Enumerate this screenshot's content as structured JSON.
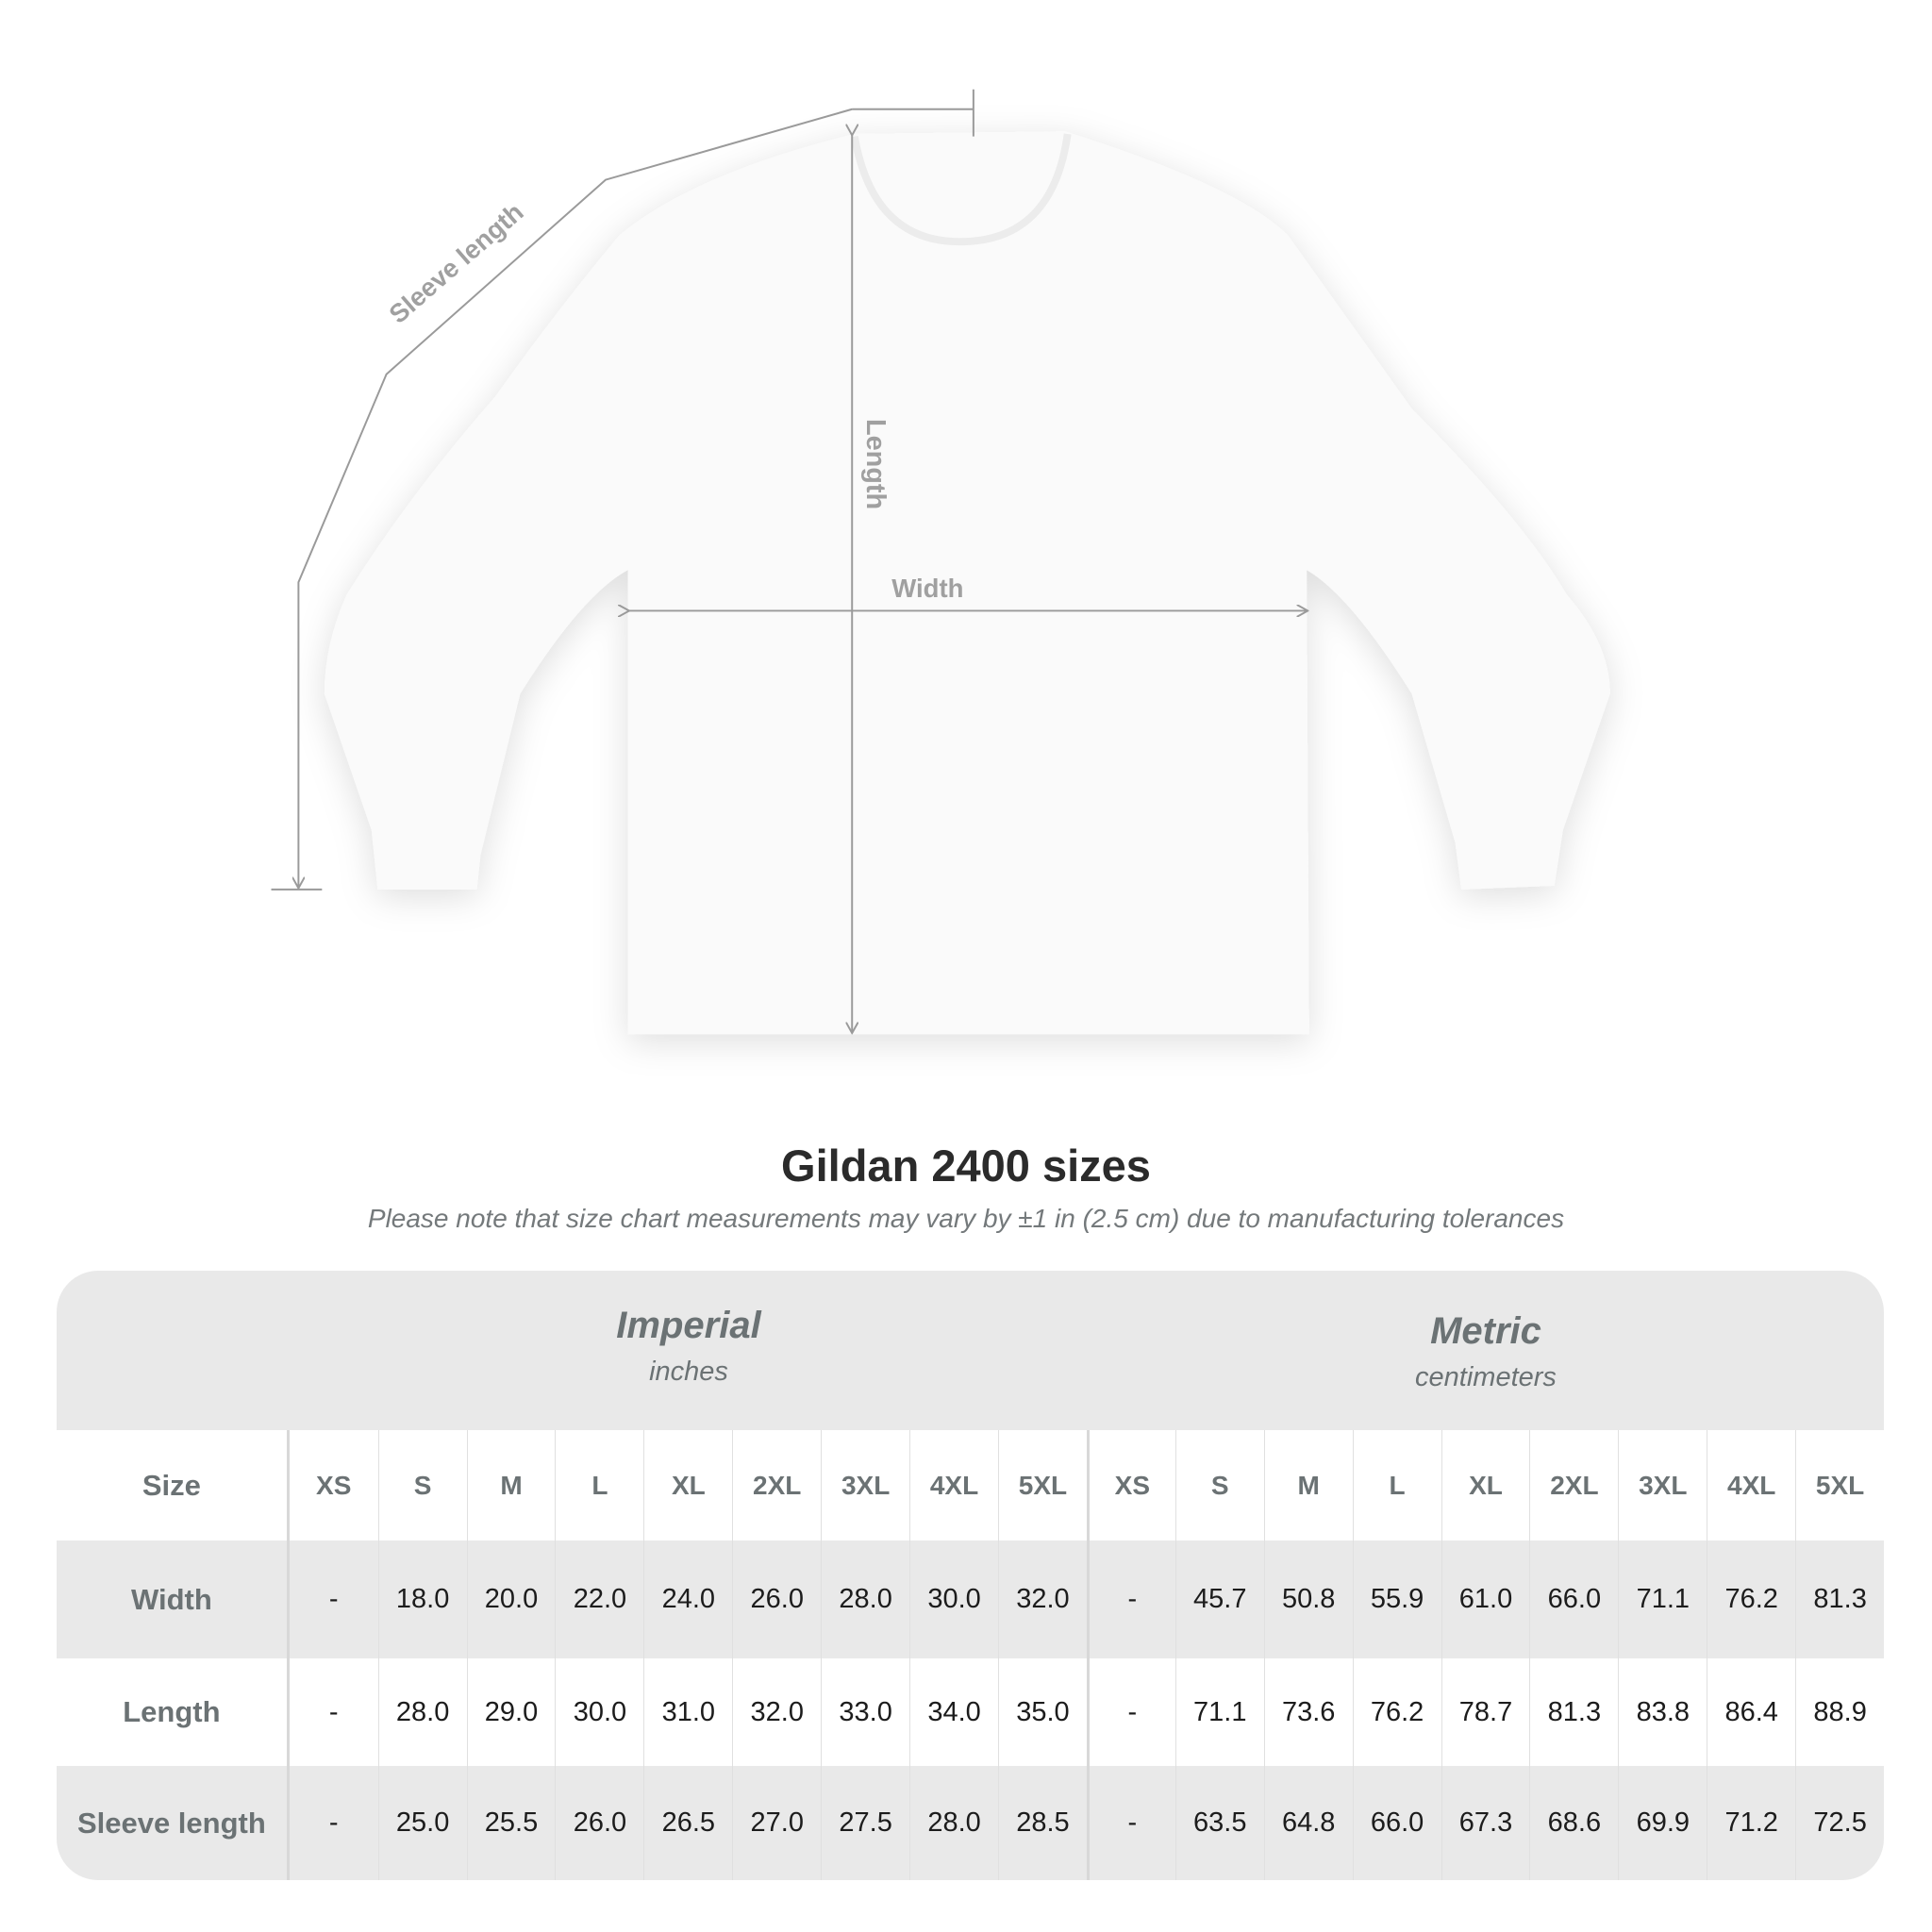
{
  "diagram": {
    "labels": {
      "sleeve": "Sleeve length",
      "length": "Length",
      "width": "Width"
    },
    "line_color": "#9a9a9a"
  },
  "title": "Gildan 2400 sizes",
  "subtitle": "Please note that size chart measurements may vary by ±1 in (2.5 cm) due to manufacturing tolerances",
  "table": {
    "imperial": {
      "name": "Imperial",
      "unit": "inches"
    },
    "metric": {
      "name": "Metric",
      "unit": "centimeters"
    },
    "size_label": "Size",
    "sizes": [
      "XS",
      "S",
      "M",
      "L",
      "XL",
      "2XL",
      "3XL",
      "4XL",
      "5XL"
    ],
    "rows": [
      {
        "label": "Width",
        "imperial": [
          "-",
          "18.0",
          "20.0",
          "22.0",
          "24.0",
          "26.0",
          "28.0",
          "30.0",
          "32.0"
        ],
        "metric": [
          "-",
          "45.7",
          "50.8",
          "55.9",
          "61.0",
          "66.0",
          "71.1",
          "76.2",
          "81.3"
        ]
      },
      {
        "label": "Length",
        "imperial": [
          "-",
          "28.0",
          "29.0",
          "30.0",
          "31.0",
          "32.0",
          "33.0",
          "34.0",
          "35.0"
        ],
        "metric": [
          "-",
          "71.1",
          "73.6",
          "76.2",
          "78.7",
          "81.3",
          "83.8",
          "86.4",
          "88.9"
        ]
      },
      {
        "label": "Sleeve length",
        "imperial": [
          "-",
          "25.0",
          "25.5",
          "26.0",
          "26.5",
          "27.0",
          "27.5",
          "28.0",
          "28.5"
        ],
        "metric": [
          "-",
          "63.5",
          "64.8",
          "66.0",
          "67.3",
          "68.6",
          "69.9",
          "71.2",
          "72.5"
        ]
      }
    ],
    "colors": {
      "header_bg": "#e9e9e9",
      "label": "#6b7274",
      "value": "#1c1c1c"
    }
  }
}
